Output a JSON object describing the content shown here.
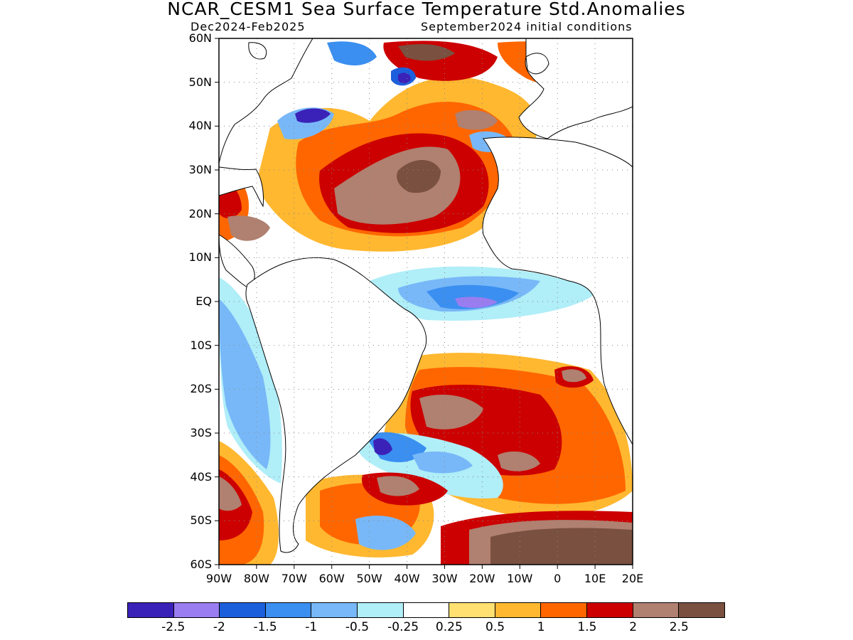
{
  "title": "NCAR_CESM1 Sea Surface Temperature Std.Anomalies",
  "subtitle_left": "Dec2024-Feb2025",
  "subtitle_right": "September2024 initial conditions",
  "map": {
    "lat_labels": [
      "60N",
      "50N",
      "40N",
      "30N",
      "20N",
      "10N",
      "EQ",
      "10S",
      "20S",
      "30S",
      "40S",
      "50S",
      "60S"
    ],
    "lon_labels": [
      "90W",
      "80W",
      "70W",
      "60W",
      "50W",
      "40W",
      "30W",
      "20W",
      "10W",
      "0",
      "10E",
      "20E"
    ],
    "grid": "dotted",
    "region": "Atlantic Ocean"
  },
  "colorbar": {
    "colors": [
      "#3a22b8",
      "#9a7df0",
      "#1c5fdc",
      "#3a8ff0",
      "#78b8f8",
      "#b0eef8",
      "#ffffff",
      "#ffe070",
      "#ffb830",
      "#ff6600",
      "#cc0000",
      "#b08070",
      "#7a5040"
    ],
    "labels": [
      "-2.5",
      "-2",
      "-1.5",
      "-1",
      "-0.5",
      "-0.25",
      "0.25",
      "0.5",
      "1",
      "1.5",
      "2",
      "2.5"
    ]
  }
}
